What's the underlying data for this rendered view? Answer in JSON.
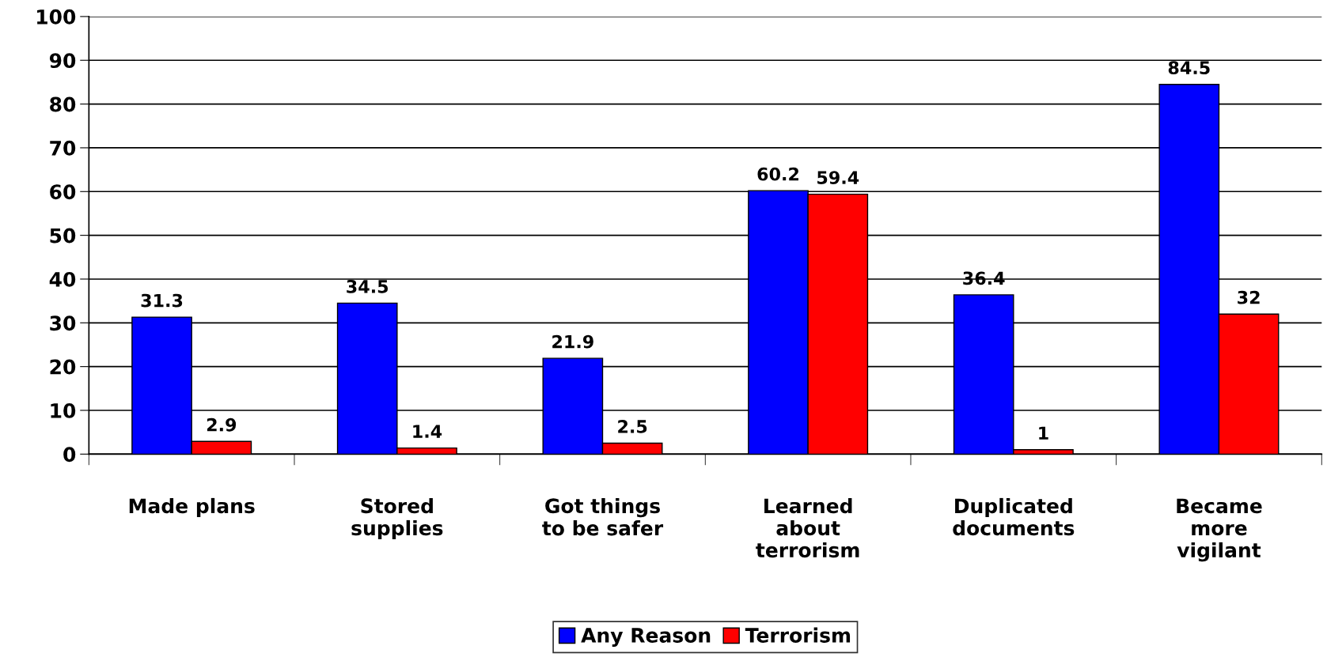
{
  "chart_data": {
    "type": "bar",
    "categories": [
      "Made plans",
      "Stored\nsupplies",
      "Got things\nto be safer",
      "Learned\nabout\nterrorism",
      "Duplicated\ndocuments",
      "Became\nmore\nvigilant"
    ],
    "series": [
      {
        "name": "Any Reason",
        "color": "#0000ff",
        "values": [
          31.3,
          34.5,
          21.9,
          60.2,
          36.4,
          84.5
        ]
      },
      {
        "name": "Terrorism",
        "color": "#ff0000",
        "values": [
          2.9,
          1.4,
          2.5,
          59.4,
          1,
          32
        ]
      }
    ],
    "ylim": [
      0,
      100
    ],
    "yticks": [
      0,
      10,
      20,
      30,
      40,
      50,
      60,
      70,
      80,
      90,
      100
    ],
    "grid": "y",
    "legend": "bottom",
    "data_labels": true
  }
}
